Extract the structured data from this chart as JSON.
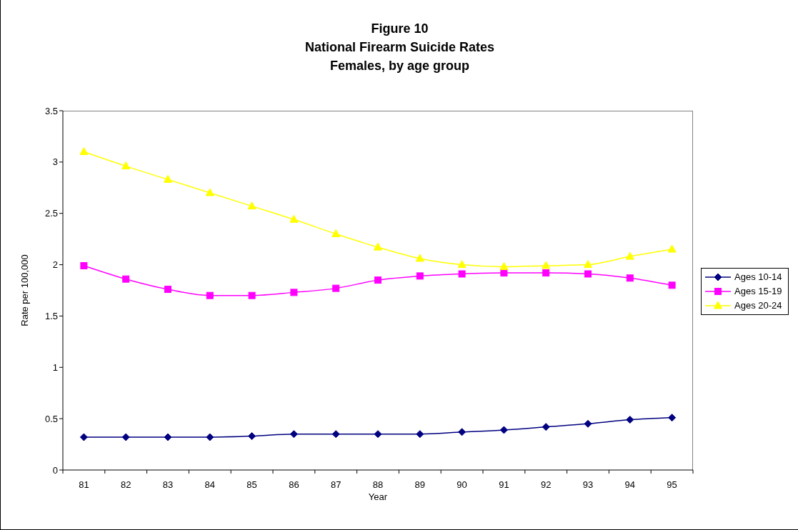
{
  "chart_data": {
    "type": "line",
    "title": "Figure 10\nNational Firearm Suicide Rates\nFemales, by age group",
    "xlabel": "Year",
    "ylabel": "Rate per 100,000",
    "categories": [
      "81",
      "82",
      "83",
      "84",
      "85",
      "86",
      "87",
      "88",
      "89",
      "90",
      "91",
      "92",
      "93",
      "94",
      "95"
    ],
    "series": [
      {
        "name": "Ages 10-14",
        "color": "#000080",
        "marker": "diamond",
        "values": [
          0.32,
          0.32,
          0.32,
          0.32,
          0.33,
          0.35,
          0.35,
          0.35,
          0.35,
          0.37,
          0.39,
          0.42,
          0.45,
          0.49,
          0.51
        ]
      },
      {
        "name": "Ages 15-19",
        "color": "#ff00ff",
        "marker": "square",
        "values": [
          1.99,
          1.86,
          1.76,
          1.7,
          1.7,
          1.73,
          1.77,
          1.85,
          1.89,
          1.91,
          1.92,
          1.92,
          1.91,
          1.87,
          1.8
        ]
      },
      {
        "name": "Ages 20-24",
        "color": "#ffff00",
        "marker": "triangle",
        "values": [
          3.1,
          2.96,
          2.83,
          2.7,
          2.57,
          2.44,
          2.3,
          2.17,
          2.06,
          2.0,
          1.98,
          1.99,
          2.0,
          2.08,
          2.15
        ]
      }
    ],
    "ylim": [
      0,
      3.5
    ],
    "yticks": [
      0,
      0.5,
      1,
      1.5,
      2,
      2.5,
      3,
      3.5
    ],
    "grid": false,
    "legend": "right"
  }
}
